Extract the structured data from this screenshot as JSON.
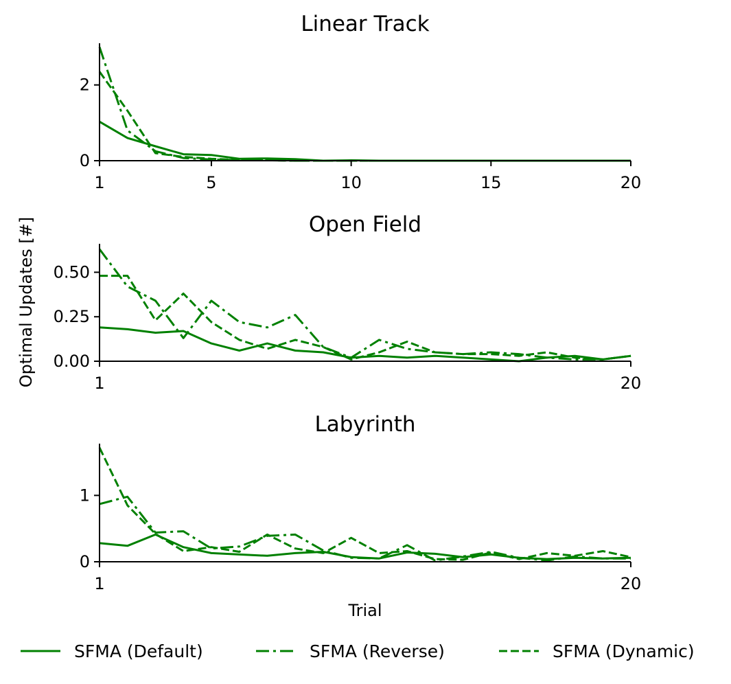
{
  "ylabel": "Optimal Updates [#]",
  "xlabel": "Trial",
  "colors": {
    "series": "#008000"
  },
  "legend": {
    "placement": "bottom",
    "entries": [
      {
        "label": "SFMA (Default)",
        "style": "solid"
      },
      {
        "label": "SFMA (Reverse)",
        "style": "dashdot"
      },
      {
        "label": "SFMA (Dynamic)",
        "style": "dashed"
      }
    ]
  },
  "chart_data": [
    {
      "type": "line",
      "title": "Linear Track",
      "x": [
        1,
        2,
        3,
        4,
        5,
        6,
        7,
        8,
        9,
        10,
        11,
        12,
        13,
        14,
        15,
        16,
        17,
        18,
        19,
        20
      ],
      "xlim": [
        1,
        20
      ],
      "ylim": [
        0,
        3.1
      ],
      "xticks": [
        1,
        5,
        10,
        15,
        20
      ],
      "yticks": [
        0,
        2
      ],
      "ytick_labels": [
        "0",
        "2"
      ],
      "series": [
        {
          "name": "SFMA (Default)",
          "style": "solid",
          "values": [
            1.03,
            0.6,
            0.38,
            0.17,
            0.15,
            0.05,
            0.06,
            0.04,
            0.0,
            0.01,
            0,
            0,
            0,
            0,
            0,
            0,
            0,
            0,
            0,
            0
          ]
        },
        {
          "name": "SFMA (Reverse)",
          "style": "dashdot",
          "values": [
            3.0,
            0.8,
            0.25,
            0.07,
            0.03,
            0.02,
            0.01,
            0.0,
            0.0,
            0,
            0,
            0,
            0,
            0,
            0,
            0,
            0,
            0,
            0,
            0
          ]
        },
        {
          "name": "SFMA (Dynamic)",
          "style": "dashed",
          "values": [
            2.35,
            1.32,
            0.2,
            0.1,
            0.05,
            0.02,
            0.01,
            0.0,
            0.0,
            0,
            0,
            0,
            0,
            0,
            0,
            0,
            0,
            0,
            0,
            0
          ]
        }
      ]
    },
    {
      "type": "line",
      "title": "Open Field",
      "x": [
        1,
        2,
        3,
        4,
        5,
        6,
        7,
        8,
        9,
        10,
        11,
        12,
        13,
        14,
        15,
        16,
        17,
        18,
        19,
        20
      ],
      "xlim": [
        1,
        20
      ],
      "ylim": [
        0,
        0.66
      ],
      "xticks": [
        1,
        20
      ],
      "yticks": [
        0,
        0.25,
        0.5
      ],
      "ytick_labels": [
        "0.00",
        "0.25",
        "0.50"
      ],
      "series": [
        {
          "name": "SFMA (Default)",
          "style": "solid",
          "values": [
            0.19,
            0.18,
            0.16,
            0.17,
            0.1,
            0.06,
            0.1,
            0.06,
            0.05,
            0.02,
            0.03,
            0.02,
            0.03,
            0.02,
            0.01,
            0.0,
            0.02,
            0.03,
            0.01,
            0.03
          ]
        },
        {
          "name": "SFMA (Reverse)",
          "style": "dashdot",
          "values": [
            0.63,
            0.42,
            0.34,
            0.13,
            0.34,
            0.22,
            0.19,
            0.26,
            0.08,
            0.02,
            0.12,
            0.07,
            0.05,
            0.04,
            0.05,
            0.04,
            0.02,
            0.01,
            0.01,
            0.03
          ]
        },
        {
          "name": "SFMA (Dynamic)",
          "style": "dashed",
          "values": [
            0.48,
            0.48,
            0.23,
            0.38,
            0.22,
            0.12,
            0.07,
            0.12,
            0.08,
            0.01,
            0.05,
            0.11,
            0.05,
            0.04,
            0.04,
            0.03,
            0.05,
            0.02,
            0.01,
            0.03
          ]
        }
      ]
    },
    {
      "type": "line",
      "title": "Labyrinth",
      "x": [
        1,
        2,
        3,
        4,
        5,
        6,
        7,
        8,
        9,
        10,
        11,
        12,
        13,
        14,
        15,
        16,
        17,
        18,
        19,
        20
      ],
      "xlim": [
        1,
        20
      ],
      "ylim": [
        0,
        1.78
      ],
      "xticks": [
        1,
        20
      ],
      "yticks": [
        0,
        1
      ],
      "ytick_labels": [
        "0",
        "1"
      ],
      "series": [
        {
          "name": "SFMA (Default)",
          "style": "solid",
          "values": [
            0.28,
            0.24,
            0.41,
            0.22,
            0.13,
            0.11,
            0.09,
            0.13,
            0.15,
            0.07,
            0.05,
            0.14,
            0.12,
            0.07,
            0.11,
            0.06,
            0.04,
            0.06,
            0.05,
            0.06
          ]
        },
        {
          "name": "SFMA (Reverse)",
          "style": "dashdot",
          "values": [
            0.87,
            0.98,
            0.44,
            0.46,
            0.2,
            0.23,
            0.39,
            0.41,
            0.17,
            0.06,
            0.05,
            0.25,
            0.02,
            0.08,
            0.15,
            0.06,
            0.02,
            0.08,
            0.05,
            0.05
          ]
        },
        {
          "name": "SFMA (Dynamic)",
          "style": "dashed",
          "values": [
            1.72,
            0.85,
            0.42,
            0.16,
            0.22,
            0.15,
            0.41,
            0.2,
            0.13,
            0.36,
            0.13,
            0.16,
            0.04,
            0.03,
            0.14,
            0.04,
            0.13,
            0.09,
            0.16,
            0.07
          ]
        }
      ]
    }
  ]
}
